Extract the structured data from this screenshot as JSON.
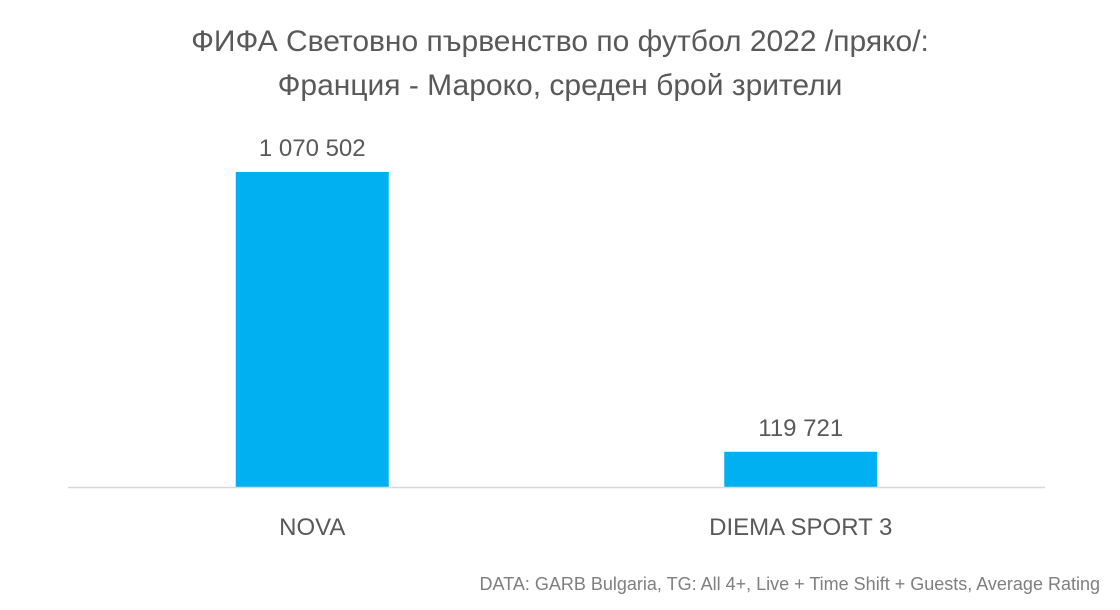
{
  "chart_data": {
    "type": "bar",
    "title": "ФИФА Световно първенство по футбол 2022 /пряко/:",
    "subtitle": "Франция - Мароко, среден брой зрители",
    "categories": [
      "NOVA",
      "DIEMA SPORT 3"
    ],
    "values": [
      1070502,
      119721
    ],
    "data_labels": [
      "1 070 502",
      "119 721"
    ],
    "xlabel": "",
    "ylabel": "",
    "ylim": [
      0,
      1070502
    ],
    "grid": false,
    "legend": "none",
    "bar_color": "#00B0F0",
    "axis_color": "#D9D9D9",
    "text_color": "#595959"
  },
  "footnote": "DATA: GARB Bulgaria, TG: All 4+, Live + Time Shift + Guests,  Average Rating"
}
